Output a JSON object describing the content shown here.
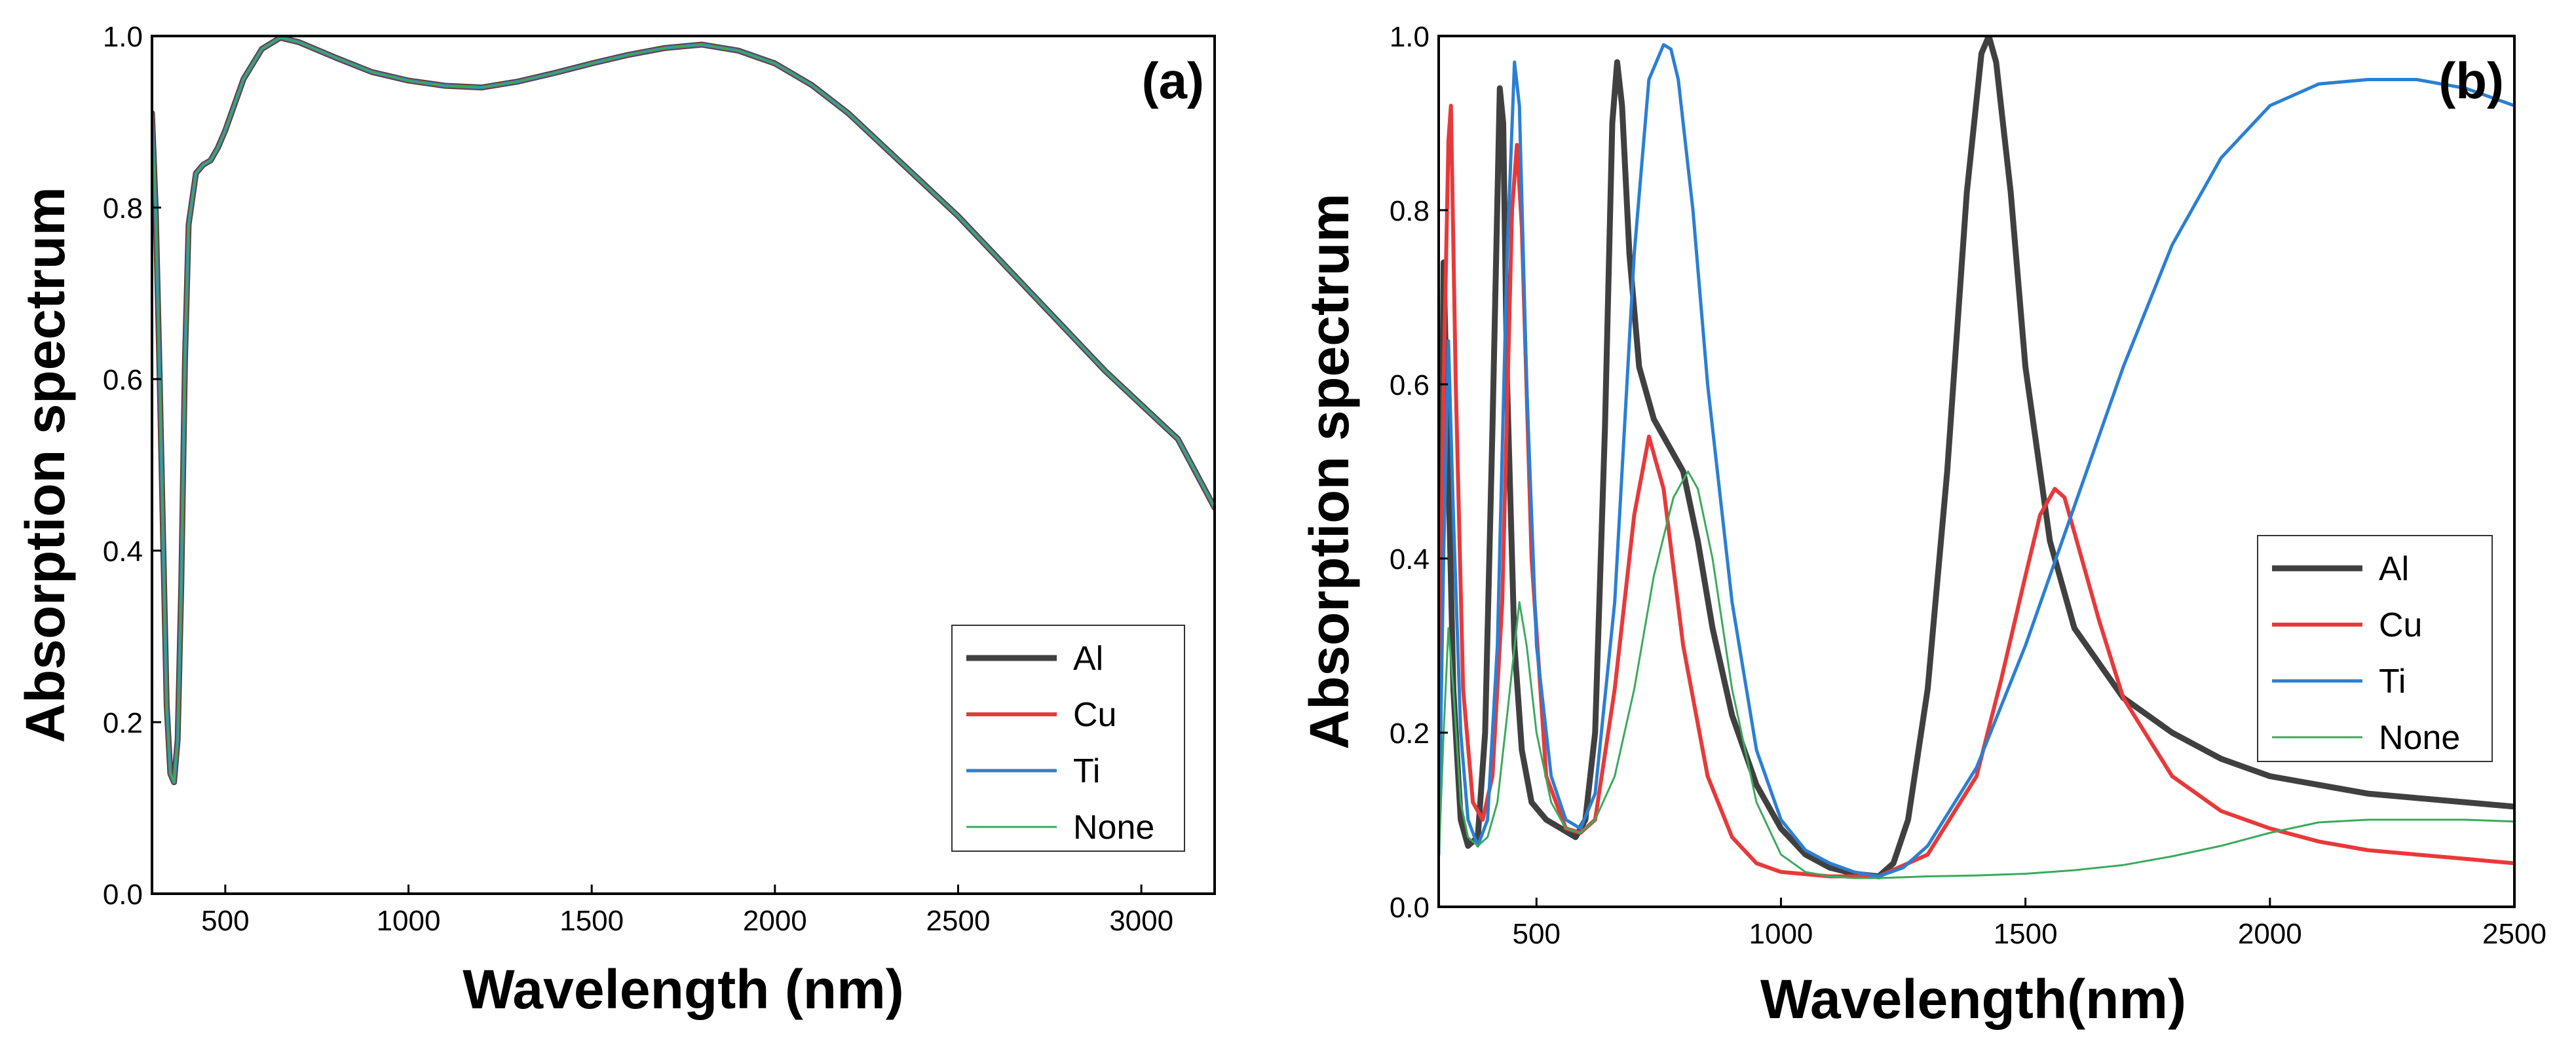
{
  "chart_data": [
    {
      "type": "line",
      "panel_label": "(a)",
      "xlabel": "Wavelength (nm)",
      "ylabel": "Absorption spectrum",
      "xlim": [
        300,
        3200
      ],
      "ylim": [
        0.0,
        1.0
      ],
      "xticks": [
        500,
        1000,
        1500,
        2000,
        2500,
        3000
      ],
      "xtick_labels": [
        "500",
        "1000",
        "1500",
        "2000",
        "2500",
        "3000"
      ],
      "yticks": [
        0.0,
        0.2,
        0.4,
        0.6,
        0.8,
        1.0
      ],
      "ytick_labels": [
        "0.0",
        "0.2",
        "0.4",
        "0.6",
        "0.8",
        "1.0"
      ],
      "legend": {
        "placement": "bottom-right",
        "entries": [
          "Al",
          "Cu",
          "Ti",
          "None"
        ]
      },
      "series": [
        {
          "name": "Al",
          "color": "#404040",
          "width": 9,
          "x": [
            300,
            310,
            320,
            330,
            340,
            350,
            360,
            370,
            380,
            390,
            400,
            420,
            440,
            460,
            480,
            500,
            550,
            600,
            650,
            700,
            800,
            900,
            1000,
            1100,
            1200,
            1300,
            1400,
            1500,
            1600,
            1700,
            1800,
            1900,
            2000,
            2100,
            2200,
            2300,
            2400,
            2500,
            2600,
            2700,
            2800,
            2900,
            3000,
            3100,
            3200
          ],
          "y": [
            0.91,
            0.8,
            0.62,
            0.42,
            0.22,
            0.14,
            0.13,
            0.18,
            0.36,
            0.62,
            0.78,
            0.84,
            0.85,
            0.855,
            0.87,
            0.89,
            0.95,
            0.985,
            0.998,
            0.993,
            0.975,
            0.958,
            0.948,
            0.942,
            0.94,
            0.947,
            0.957,
            0.968,
            0.978,
            0.986,
            0.99,
            0.983,
            0.968,
            0.943,
            0.91,
            0.87,
            0.83,
            0.79,
            0.745,
            0.7,
            0.655,
            0.61,
            0.57,
            0.53,
            0.45
          ]
        },
        {
          "name": "Cu",
          "color": "#e8393a",
          "width": 6,
          "x": [
            300,
            310,
            320,
            330,
            340,
            350,
            360,
            370,
            380,
            390,
            400,
            420,
            440,
            460,
            480,
            500,
            550,
            600,
            650,
            700,
            800,
            900,
            1000,
            1100,
            1200,
            1300,
            1400,
            1500,
            1600,
            1700,
            1800,
            1900,
            2000,
            2100,
            2200,
            2300,
            2400,
            2500,
            2600,
            2700,
            2800,
            2900,
            3000,
            3100,
            3200
          ],
          "y": [
            0.91,
            0.8,
            0.62,
            0.42,
            0.22,
            0.14,
            0.13,
            0.18,
            0.36,
            0.62,
            0.78,
            0.84,
            0.85,
            0.855,
            0.87,
            0.89,
            0.95,
            0.985,
            0.998,
            0.993,
            0.975,
            0.958,
            0.948,
            0.942,
            0.94,
            0.947,
            0.957,
            0.968,
            0.978,
            0.986,
            0.99,
            0.983,
            0.968,
            0.943,
            0.91,
            0.87,
            0.83,
            0.79,
            0.745,
            0.7,
            0.655,
            0.61,
            0.57,
            0.53,
            0.45
          ]
        },
        {
          "name": "Ti",
          "color": "#2a7fd4",
          "width": 5,
          "x": [
            300,
            310,
            320,
            330,
            340,
            350,
            360,
            370,
            380,
            390,
            400,
            420,
            440,
            460,
            480,
            500,
            550,
            600,
            650,
            700,
            800,
            900,
            1000,
            1100,
            1200,
            1300,
            1400,
            1500,
            1600,
            1700,
            1800,
            1900,
            2000,
            2100,
            2200,
            2300,
            2400,
            2500,
            2600,
            2700,
            2800,
            2900,
            3000,
            3100,
            3200
          ],
          "y": [
            0.91,
            0.8,
            0.62,
            0.42,
            0.22,
            0.14,
            0.13,
            0.18,
            0.36,
            0.62,
            0.78,
            0.84,
            0.85,
            0.855,
            0.87,
            0.89,
            0.95,
            0.985,
            0.998,
            0.993,
            0.975,
            0.958,
            0.948,
            0.942,
            0.94,
            0.947,
            0.957,
            0.968,
            0.978,
            0.986,
            0.99,
            0.983,
            0.968,
            0.943,
            0.91,
            0.87,
            0.83,
            0.79,
            0.745,
            0.7,
            0.655,
            0.61,
            0.57,
            0.53,
            0.45
          ]
        },
        {
          "name": "None",
          "color": "#3aaa5c",
          "width": 3,
          "x": [
            300,
            310,
            320,
            330,
            340,
            350,
            360,
            370,
            380,
            390,
            400,
            420,
            440,
            460,
            480,
            500,
            550,
            600,
            650,
            700,
            800,
            900,
            1000,
            1100,
            1200,
            1300,
            1400,
            1500,
            1600,
            1700,
            1800,
            1900,
            2000,
            2100,
            2200,
            2300,
            2400,
            2500,
            2600,
            2700,
            2800,
            2900,
            3000,
            3100,
            3200
          ],
          "y": [
            0.91,
            0.8,
            0.62,
            0.42,
            0.22,
            0.14,
            0.13,
            0.18,
            0.36,
            0.62,
            0.78,
            0.84,
            0.85,
            0.855,
            0.87,
            0.89,
            0.95,
            0.985,
            0.998,
            0.993,
            0.975,
            0.958,
            0.948,
            0.942,
            0.94,
            0.947,
            0.957,
            0.968,
            0.978,
            0.986,
            0.99,
            0.983,
            0.968,
            0.943,
            0.91,
            0.87,
            0.83,
            0.79,
            0.745,
            0.7,
            0.655,
            0.61,
            0.57,
            0.53,
            0.45
          ]
        }
      ]
    },
    {
      "type": "line",
      "panel_label": "(b)",
      "xlabel": "Wavelength(nm)",
      "ylabel": "Absorption spectrum",
      "xlim": [
        300,
        2500
      ],
      "ylim": [
        0.0,
        1.0
      ],
      "xticks": [
        500,
        1000,
        1500,
        2000,
        2500
      ],
      "xtick_labels": [
        "500",
        "1000",
        "1500",
        "2000",
        "2500"
      ],
      "yticks": [
        0.0,
        0.2,
        0.4,
        0.6,
        0.8,
        1.0
      ],
      "ytick_labels": [
        "0.0",
        "0.2",
        "0.4",
        "0.6",
        "0.8",
        "1.0"
      ],
      "legend": {
        "placement": "right",
        "entries": [
          "Al",
          "Cu",
          "Ti",
          "None"
        ]
      },
      "series": [
        {
          "name": "Al",
          "color": "#404040",
          "width": 9,
          "x": [
            300,
            310,
            320,
            330,
            345,
            360,
            380,
            395,
            410,
            425,
            432,
            440,
            455,
            470,
            490,
            520,
            550,
            580,
            600,
            620,
            640,
            655,
            665,
            675,
            690,
            710,
            740,
            770,
            800,
            830,
            860,
            900,
            950,
            1000,
            1050,
            1100,
            1150,
            1200,
            1230,
            1260,
            1300,
            1340,
            1380,
            1410,
            1425,
            1440,
            1470,
            1500,
            1550,
            1600,
            1700,
            1800,
            1900,
            2000,
            2100,
            2200,
            2300,
            2400,
            2500
          ],
          "y": [
            0.12,
            0.74,
            0.5,
            0.25,
            0.1,
            0.07,
            0.08,
            0.2,
            0.55,
            0.94,
            0.9,
            0.6,
            0.3,
            0.18,
            0.12,
            0.1,
            0.09,
            0.08,
            0.1,
            0.2,
            0.55,
            0.9,
            0.97,
            0.92,
            0.75,
            0.62,
            0.56,
            0.53,
            0.5,
            0.42,
            0.32,
            0.22,
            0.14,
            0.09,
            0.06,
            0.045,
            0.038,
            0.035,
            0.05,
            0.1,
            0.25,
            0.5,
            0.82,
            0.98,
            1.0,
            0.97,
            0.82,
            0.62,
            0.42,
            0.32,
            0.24,
            0.2,
            0.17,
            0.15,
            0.14,
            0.13,
            0.125,
            0.12,
            0.115
          ]
        },
        {
          "name": "Cu",
          "color": "#e8393a",
          "width": 6,
          "x": [
            300,
            310,
            320,
            325,
            335,
            350,
            370,
            390,
            410,
            430,
            450,
            460,
            470,
            490,
            520,
            560,
            590,
            620,
            660,
            700,
            730,
            760,
            800,
            850,
            900,
            950,
            1000,
            1100,
            1200,
            1300,
            1400,
            1450,
            1500,
            1530,
            1560,
            1580,
            1600,
            1650,
            1700,
            1800,
            1900,
            2000,
            2100,
            2200,
            2300,
            2400,
            2500
          ],
          "y": [
            0.15,
            0.6,
            0.88,
            0.92,
            0.6,
            0.25,
            0.12,
            0.1,
            0.15,
            0.35,
            0.8,
            0.875,
            0.78,
            0.4,
            0.15,
            0.09,
            0.085,
            0.1,
            0.25,
            0.45,
            0.54,
            0.48,
            0.3,
            0.15,
            0.08,
            0.05,
            0.04,
            0.035,
            0.035,
            0.06,
            0.15,
            0.26,
            0.38,
            0.45,
            0.48,
            0.47,
            0.43,
            0.33,
            0.24,
            0.15,
            0.11,
            0.09,
            0.075,
            0.065,
            0.06,
            0.055,
            0.05
          ]
        },
        {
          "name": "Ti",
          "color": "#2a7fd4",
          "width": 5,
          "x": [
            300,
            310,
            320,
            330,
            345,
            360,
            380,
            400,
            420,
            440,
            455,
            465,
            480,
            500,
            530,
            560,
            590,
            620,
            660,
            700,
            730,
            760,
            775,
            790,
            820,
            850,
            900,
            950,
            1000,
            1050,
            1100,
            1150,
            1200,
            1250,
            1300,
            1400,
            1500,
            1600,
            1700,
            1800,
            1900,
            2000,
            2100,
            2200,
            2300,
            2400,
            2500
          ],
          "y": [
            0.06,
            0.4,
            0.65,
            0.45,
            0.2,
            0.1,
            0.07,
            0.1,
            0.3,
            0.75,
            0.97,
            0.92,
            0.6,
            0.3,
            0.15,
            0.1,
            0.09,
            0.13,
            0.35,
            0.75,
            0.95,
            0.99,
            0.985,
            0.95,
            0.8,
            0.6,
            0.35,
            0.18,
            0.1,
            0.065,
            0.05,
            0.04,
            0.035,
            0.045,
            0.07,
            0.16,
            0.3,
            0.46,
            0.62,
            0.76,
            0.86,
            0.92,
            0.945,
            0.95,
            0.95,
            0.94,
            0.92
          ]
        },
        {
          "name": "None",
          "color": "#3aaa5c",
          "width": 3,
          "x": [
            300,
            310,
            320,
            330,
            345,
            360,
            380,
            400,
            420,
            440,
            465,
            480,
            500,
            530,
            560,
            590,
            620,
            660,
            700,
            740,
            780,
            810,
            830,
            860,
            900,
            950,
            1000,
            1050,
            1100,
            1150,
            1200,
            1300,
            1400,
            1500,
            1600,
            1700,
            1800,
            1900,
            2000,
            2100,
            2200,
            2300,
            2400,
            2500
          ],
          "y": [
            0.05,
            0.2,
            0.32,
            0.25,
            0.12,
            0.08,
            0.07,
            0.08,
            0.12,
            0.22,
            0.35,
            0.3,
            0.2,
            0.12,
            0.09,
            0.085,
            0.1,
            0.15,
            0.25,
            0.38,
            0.47,
            0.5,
            0.48,
            0.4,
            0.25,
            0.12,
            0.06,
            0.04,
            0.035,
            0.033,
            0.033,
            0.035,
            0.036,
            0.038,
            0.042,
            0.048,
            0.058,
            0.07,
            0.085,
            0.097,
            0.1,
            0.1,
            0.1,
            0.098
          ]
        }
      ]
    }
  ]
}
